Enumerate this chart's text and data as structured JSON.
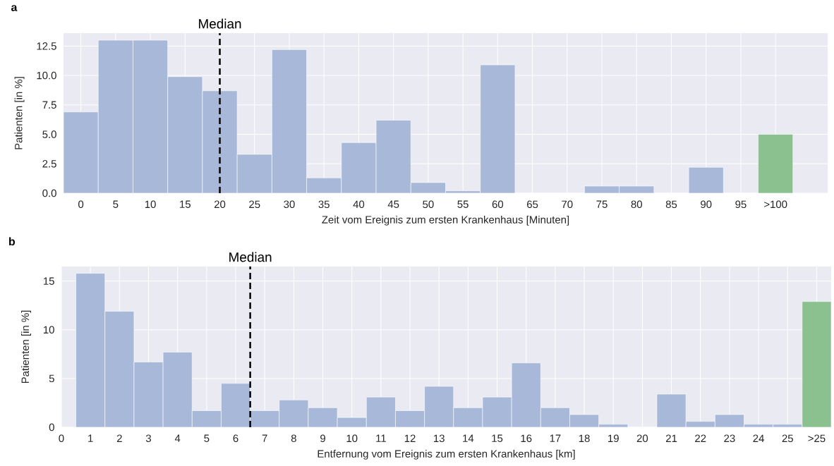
{
  "chart_data": [
    {
      "type": "histogram",
      "title": "a",
      "xlabel": "Zeit vom Ereignis zum ersten Krankenhaus [Minuten]",
      "ylabel": "Patienten [in %]",
      "bins": [
        -2.5,
        2.5,
        7.5,
        12.5,
        17.5,
        22.5,
        27.5,
        32.5,
        37.5,
        42.5,
        47.5,
        52.5,
        57.5,
        62.5,
        67.5,
        72.5,
        77.5,
        82.5,
        87.5,
        92.5,
        97.5,
        102.5
      ],
      "values": [
        6.9,
        13.0,
        13.0,
        9.9,
        8.7,
        3.3,
        12.2,
        1.3,
        4.3,
        6.2,
        0.9,
        0.2,
        10.9,
        0,
        0,
        0.6,
        0.6,
        0,
        2.2,
        0,
        5.0
      ],
      "colors": [
        "#a8b8d8",
        "#a8b8d8",
        "#a8b8d8",
        "#a8b8d8",
        "#a8b8d8",
        "#a8b8d8",
        "#a8b8d8",
        "#a8b8d8",
        "#a8b8d8",
        "#a8b8d8",
        "#a8b8d8",
        "#a8b8d8",
        "#a8b8d8",
        "#a8b8d8",
        "#a8b8d8",
        "#a8b8d8",
        "#a8b8d8",
        "#a8b8d8",
        "#a8b8d8",
        "#a8b8d8",
        "#8bc08f"
      ],
      "xlim": [
        -2.5,
        107.5
      ],
      "ylim": [
        0,
        13.6
      ],
      "xticks": [
        0,
        5,
        10,
        15,
        20,
        25,
        30,
        35,
        40,
        45,
        50,
        55,
        60,
        65,
        70,
        75,
        80,
        85,
        90,
        95,
        {
          "value": 100,
          "label": ">100"
        }
      ],
      "yticks": [
        {
          "value": 0,
          "label": "0.0"
        },
        {
          "value": 2.5,
          "label": "2.5"
        },
        {
          "value": 5,
          "label": "5.0"
        },
        {
          "value": 7.5,
          "label": "7.5"
        },
        {
          "value": 10,
          "label": "10.0"
        },
        {
          "value": 12.5,
          "label": "12.5"
        }
      ],
      "grid": true,
      "ref_lines": [
        {
          "axis": "x",
          "value": 20,
          "label": "Median",
          "color": "#000000",
          "line_style": "dashed"
        }
      ]
    },
    {
      "type": "histogram",
      "title": "b",
      "xlabel": "Entfernung vom Ereignis zum ersten Krankenhaus [km]",
      "ylabel": "Patienten [in %]",
      "bins": [
        0.5,
        1.5,
        2.5,
        3.5,
        4.5,
        5.5,
        6.5,
        7.5,
        8.5,
        9.5,
        10.5,
        11.5,
        12.5,
        13.5,
        14.5,
        15.5,
        16.5,
        17.5,
        18.5,
        19.5,
        20.5,
        21.5,
        22.5,
        23.5,
        24.5,
        25.5,
        26.5
      ],
      "values": [
        15.8,
        11.9,
        6.7,
        7.7,
        1.7,
        4.5,
        1.7,
        2.8,
        2.0,
        1.0,
        3.1,
        1.7,
        4.2,
        2.0,
        3.1,
        6.6,
        2.0,
        1.3,
        0.3,
        0,
        3.4,
        0.6,
        1.3,
        0.3,
        0.3,
        12.9
      ],
      "colors": [
        "#a8b8d8",
        "#a8b8d8",
        "#a8b8d8",
        "#a8b8d8",
        "#a8b8d8",
        "#a8b8d8",
        "#a8b8d8",
        "#a8b8d8",
        "#a8b8d8",
        "#a8b8d8",
        "#a8b8d8",
        "#a8b8d8",
        "#a8b8d8",
        "#a8b8d8",
        "#a8b8d8",
        "#a8b8d8",
        "#a8b8d8",
        "#a8b8d8",
        "#a8b8d8",
        "#a8b8d8",
        "#a8b8d8",
        "#a8b8d8",
        "#a8b8d8",
        "#a8b8d8",
        "#a8b8d8",
        "#8bc08f"
      ],
      "xlim": [
        0,
        26.5
      ],
      "ylim": [
        0,
        16.5
      ],
      "xticks": [
        0,
        1,
        2,
        3,
        4,
        5,
        6,
        7,
        8,
        9,
        10,
        11,
        12,
        13,
        14,
        15,
        16,
        17,
        18,
        19,
        20,
        21,
        22,
        23,
        24,
        25,
        {
          "value": 26,
          "label": ">25"
        }
      ],
      "yticks": [
        0,
        5,
        10,
        15
      ],
      "grid": true,
      "ref_lines": [
        {
          "axis": "x",
          "value": 6.5,
          "label": "Median",
          "color": "#000000",
          "line_style": "dashed"
        }
      ]
    }
  ]
}
